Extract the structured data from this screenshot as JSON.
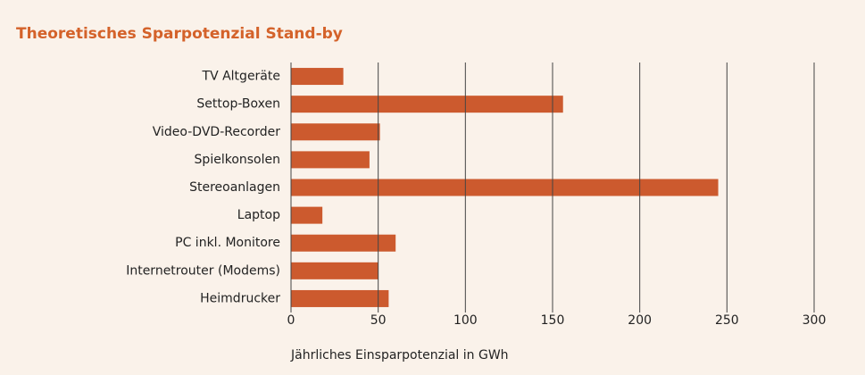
{
  "chart_data": {
    "type": "bar",
    "orientation": "horizontal",
    "title": "Theoretisches Sparpotenzial Stand-by",
    "x_label": "Jährliches Einsparpotenzial in GWh",
    "categories": [
      "TV Altgeräte",
      "Settop-Boxen",
      "Video-DVD-Recorder",
      "Spielkonsolen",
      "Stereoanlagen",
      "Laptop",
      "PC inkl. Monitore",
      "Internetrouter (Modems)",
      "Heimdrucker"
    ],
    "values": [
      30,
      156,
      51,
      45,
      245,
      18,
      60,
      50,
      56
    ],
    "color": "#cc5a2e",
    "xlim": [
      0,
      300
    ],
    "xticks": [
      0,
      50,
      100,
      150,
      200,
      250,
      300
    ],
    "grid": true
  }
}
